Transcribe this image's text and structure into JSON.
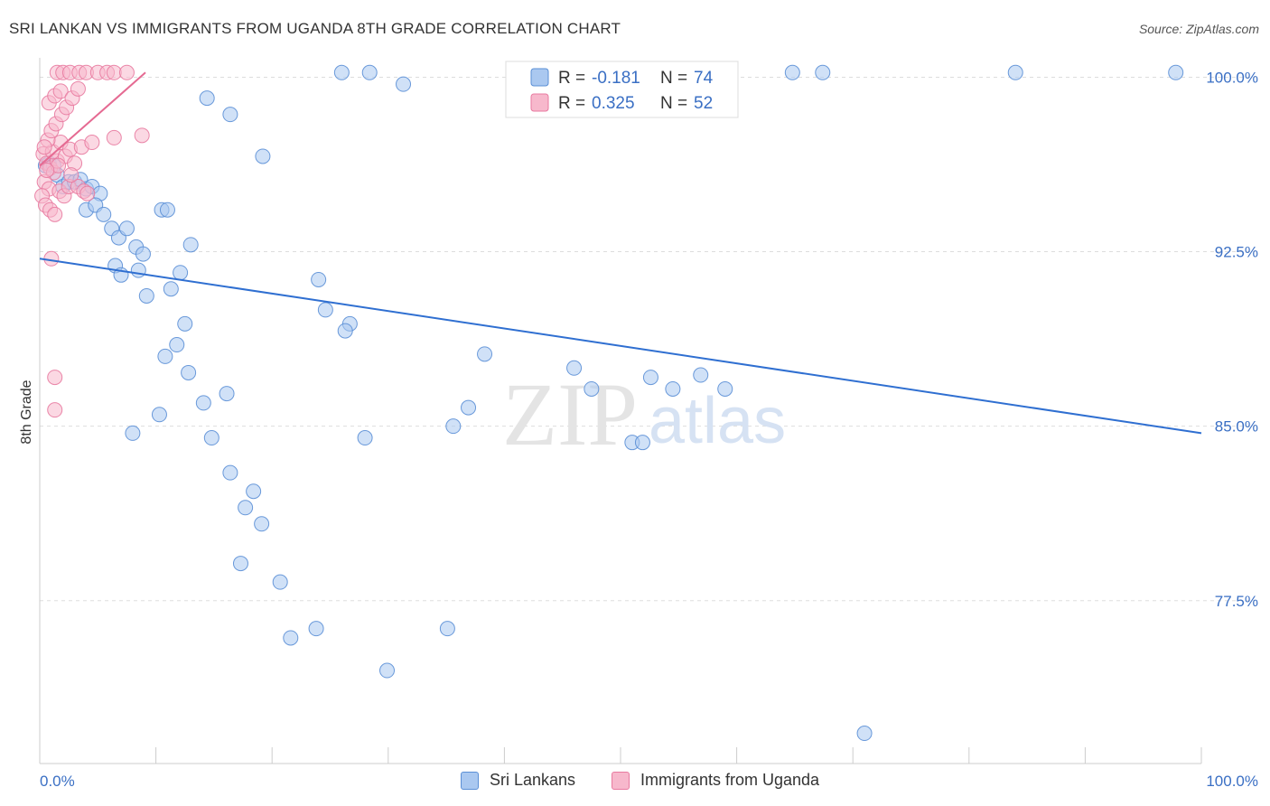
{
  "title": "SRI LANKAN VS IMMIGRANTS FROM UGANDA 8TH GRADE CORRELATION CHART",
  "source": "Source: ZipAtlas.com",
  "watermark": {
    "zip": "ZIP",
    "atlas": "atlas"
  },
  "colors": {
    "blue_fill": "#aac8f0",
    "blue_stroke": "#5b8fd6",
    "blue_line": "#2f6fd1",
    "pink_fill": "#f7b8cc",
    "pink_stroke": "#e87aa0",
    "pink_line": "#e56a92",
    "axis_label": "#3a6fc4",
    "grid": "#dddddd"
  },
  "legend_top": {
    "rows": [
      {
        "r_label": "R =",
        "r_value": "-0.181",
        "n_label": "N =",
        "n_value": "74",
        "color": "blue"
      },
      {
        "r_label": "R =",
        "r_value": "0.325",
        "n_label": "N =",
        "n_value": "52",
        "color": "pink"
      }
    ]
  },
  "legend_bottom": [
    {
      "label": "Sri Lankans",
      "color": "blue"
    },
    {
      "label": "Immigrants from Uganda",
      "color": "pink"
    }
  ],
  "chart_data": {
    "type": "scatter",
    "title": "SRI LANKAN VS IMMIGRANTS FROM UGANDA 8TH GRADE CORRELATION CHART",
    "xlabel": "",
    "ylabel": "8th Grade",
    "xlim": [
      0,
      100
    ],
    "ylim": [
      70.5,
      100.6
    ],
    "x_tick_labels": [
      {
        "value": 0,
        "label": "0.0%"
      },
      {
        "value": 100,
        "label": "100.0%"
      }
    ],
    "y_ticks": [
      {
        "value": 100.0,
        "label": "100.0%"
      },
      {
        "value": 92.5,
        "label": "92.5%"
      },
      {
        "value": 85.0,
        "label": "85.0%"
      },
      {
        "value": 77.5,
        "label": "77.5%"
      }
    ],
    "series": [
      {
        "name": "Sri Lankans",
        "color": "blue",
        "r": -0.181,
        "n": 74,
        "trend": {
          "x0": 0,
          "y0": 92.2,
          "x1": 100,
          "y1": 84.7
        },
        "points": [
          [
            0.5,
            96.2
          ],
          [
            0.8,
            96.3
          ],
          [
            1.2,
            96.2
          ],
          [
            1.5,
            95.8
          ],
          [
            2.0,
            95.3
          ],
          [
            2.5,
            95.5
          ],
          [
            3.0,
            95.5
          ],
          [
            3.5,
            95.6
          ],
          [
            4.0,
            95.2
          ],
          [
            4.5,
            95.3
          ],
          [
            5.2,
            95.0
          ],
          [
            4.0,
            94.3
          ],
          [
            4.8,
            94.5
          ],
          [
            5.5,
            94.1
          ],
          [
            6.2,
            93.5
          ],
          [
            6.8,
            93.1
          ],
          [
            7.5,
            93.5
          ],
          [
            8.3,
            92.7
          ],
          [
            8.9,
            92.4
          ],
          [
            6.5,
            91.9
          ],
          [
            8.5,
            91.7
          ],
          [
            7.0,
            91.5
          ],
          [
            9.2,
            90.6
          ],
          [
            10.5,
            94.3
          ],
          [
            11.0,
            94.3
          ],
          [
            12.1,
            91.6
          ],
          [
            11.3,
            90.9
          ],
          [
            13.0,
            92.8
          ],
          [
            12.5,
            89.4
          ],
          [
            11.8,
            88.5
          ],
          [
            10.8,
            88.0
          ],
          [
            12.8,
            87.3
          ],
          [
            14.1,
            86.0
          ],
          [
            14.8,
            84.5
          ],
          [
            16.1,
            86.4
          ],
          [
            10.3,
            85.5
          ],
          [
            8.0,
            84.7
          ],
          [
            16.4,
            83.0
          ],
          [
            17.7,
            81.5
          ],
          [
            18.4,
            82.2
          ],
          [
            19.1,
            80.8
          ],
          [
            17.3,
            79.1
          ],
          [
            20.7,
            78.3
          ],
          [
            21.6,
            75.9
          ],
          [
            23.8,
            76.3
          ],
          [
            29.9,
            74.5
          ],
          [
            35.1,
            76.3
          ],
          [
            26.7,
            89.4
          ],
          [
            24.0,
            91.3
          ],
          [
            24.6,
            90.0
          ],
          [
            26.3,
            89.1
          ],
          [
            28.0,
            84.5
          ],
          [
            35.6,
            85.0
          ],
          [
            36.9,
            85.8
          ],
          [
            38.3,
            88.1
          ],
          [
            46.0,
            87.5
          ],
          [
            47.5,
            86.6
          ],
          [
            51.0,
            84.3
          ],
          [
            51.9,
            84.3
          ],
          [
            52.6,
            87.1
          ],
          [
            54.5,
            86.6
          ],
          [
            56.9,
            87.2
          ],
          [
            59.0,
            86.6
          ],
          [
            71.0,
            71.8
          ],
          [
            64.8,
            100.2
          ],
          [
            67.4,
            100.2
          ],
          [
            84.0,
            100.2
          ],
          [
            97.8,
            100.2
          ],
          [
            14.4,
            99.1
          ],
          [
            16.4,
            98.4
          ],
          [
            19.2,
            96.6
          ],
          [
            26.0,
            100.2
          ],
          [
            28.4,
            100.2
          ],
          [
            31.3,
            99.7
          ]
        ]
      },
      {
        "name": "Immigrants from Uganda",
        "color": "pink",
        "r": 0.325,
        "n": 52,
        "trend": {
          "x0": 0,
          "y0": 96.2,
          "x1": 9.1,
          "y1": 100.2
        },
        "points": [
          [
            0.3,
            96.7
          ],
          [
            0.6,
            96.3
          ],
          [
            0.9,
            96.1
          ],
          [
            1.2,
            95.9
          ],
          [
            0.4,
            95.5
          ],
          [
            0.8,
            95.2
          ],
          [
            1.5,
            96.4
          ],
          [
            1.1,
            96.8
          ],
          [
            1.8,
            97.2
          ],
          [
            2.2,
            96.6
          ],
          [
            2.6,
            96.9
          ],
          [
            3.0,
            96.3
          ],
          [
            0.2,
            94.9
          ],
          [
            0.5,
            94.5
          ],
          [
            0.9,
            94.3
          ],
          [
            1.3,
            94.1
          ],
          [
            1.7,
            95.1
          ],
          [
            2.1,
            94.9
          ],
          [
            2.5,
            95.3
          ],
          [
            3.3,
            95.3
          ],
          [
            3.8,
            95.1
          ],
          [
            4.1,
            95.0
          ],
          [
            0.7,
            97.3
          ],
          [
            1.0,
            97.7
          ],
          [
            1.4,
            98.0
          ],
          [
            1.9,
            98.4
          ],
          [
            2.3,
            98.7
          ],
          [
            0.8,
            98.9
          ],
          [
            1.3,
            99.2
          ],
          [
            1.8,
            99.4
          ],
          [
            2.8,
            99.1
          ],
          [
            3.3,
            99.5
          ],
          [
            1.5,
            100.2
          ],
          [
            2.0,
            100.2
          ],
          [
            2.6,
            100.2
          ],
          [
            3.4,
            100.2
          ],
          [
            4.0,
            100.2
          ],
          [
            5.0,
            100.2
          ],
          [
            5.8,
            100.2
          ],
          [
            6.4,
            100.2
          ],
          [
            7.5,
            100.2
          ],
          [
            3.6,
            97.0
          ],
          [
            4.5,
            97.2
          ],
          [
            6.4,
            97.4
          ],
          [
            8.8,
            97.5
          ],
          [
            0.4,
            97.0
          ],
          [
            1.6,
            96.2
          ],
          [
            2.7,
            95.8
          ],
          [
            1.0,
            92.2
          ],
          [
            1.3,
            87.1
          ],
          [
            1.3,
            85.7
          ],
          [
            0.6,
            96.0
          ]
        ]
      }
    ]
  }
}
